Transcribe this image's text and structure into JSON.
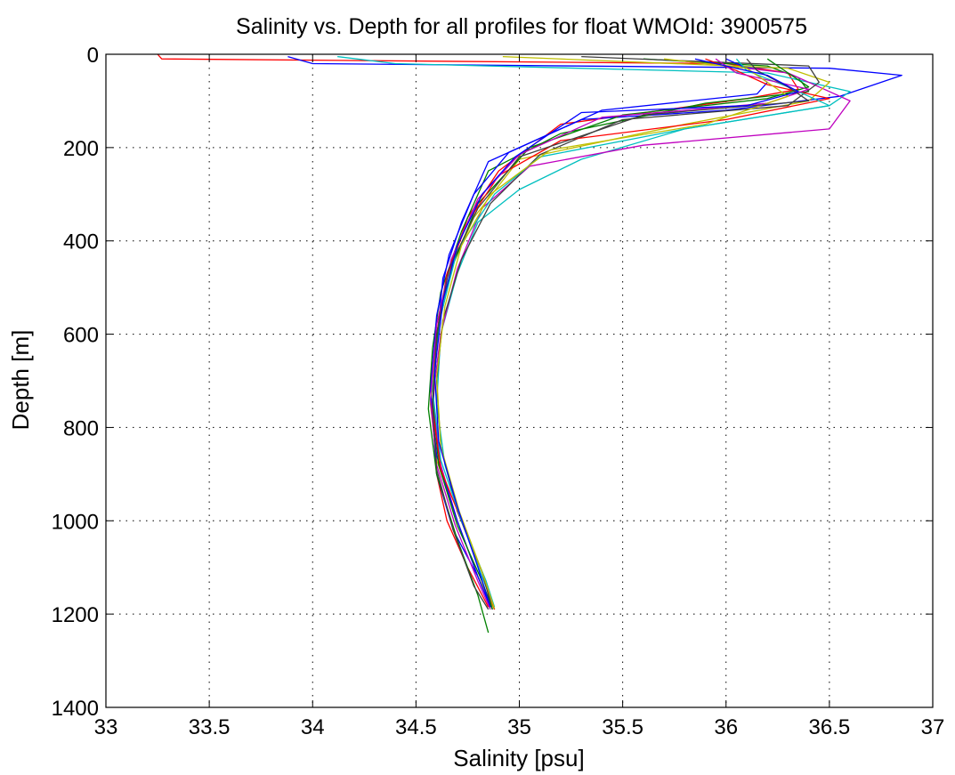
{
  "chart_data": {
    "type": "line",
    "title": "Salinity vs. Depth for all profiles for float WMOId: 3900575",
    "xlabel": "Salinity [psu]",
    "ylabel": "Depth [m]",
    "xlim": [
      33,
      37
    ],
    "ylim": [
      0,
      1400
    ],
    "y_reversed": true,
    "grid": true,
    "legend": "none",
    "x_ticks": [
      33,
      33.5,
      34,
      34.5,
      35,
      35.5,
      36,
      36.5,
      37
    ],
    "x_tick_labels": [
      "33",
      "33.5",
      "34",
      "34.5",
      "35",
      "35.5",
      "36",
      "36.5",
      "37"
    ],
    "y_ticks": [
      0,
      200,
      400,
      600,
      800,
      1000,
      1200,
      1400
    ],
    "y_tick_labels": [
      "0",
      "200",
      "400",
      "600",
      "800",
      "1000",
      "1200",
      "1400"
    ],
    "colors": [
      "#0000ff",
      "#008000",
      "#ff0000",
      "#00bfbf",
      "#bf00bf",
      "#bfbf00",
      "#404040"
    ],
    "series": [
      {
        "color": "#ff0000",
        "x": [
          33.25,
          33.27,
          36.0,
          36.3,
          36.35,
          36.1,
          35.2,
          34.9,
          34.75,
          34.65,
          34.6,
          34.58,
          34.6,
          34.65,
          34.75,
          34.85
        ],
        "y": [
          0,
          10,
          20,
          40,
          75,
          95,
          150,
          250,
          350,
          480,
          600,
          760,
          900,
          1000,
          1100,
          1185
        ]
      },
      {
        "color": "#0000ff",
        "x": [
          33.88,
          34.0,
          36.5,
          36.85,
          36.55,
          36.0,
          35.3,
          34.85,
          34.72,
          34.63,
          34.6,
          34.58,
          34.6,
          34.68,
          34.8,
          34.87
        ],
        "y": [
          5,
          20,
          30,
          45,
          90,
          120,
          140,
          230,
          360,
          480,
          620,
          780,
          900,
          1020,
          1120,
          1190
        ]
      },
      {
        "color": "#008000",
        "x": [
          35.6,
          36.2,
          36.35,
          36.4,
          35.9,
          35.2,
          34.85,
          34.72,
          34.62,
          34.58,
          34.56,
          34.6,
          34.7,
          34.8,
          34.85
        ],
        "y": [
          10,
          25,
          50,
          80,
          105,
          170,
          250,
          380,
          510,
          630,
          760,
          900,
          1040,
          1160,
          1240
        ]
      },
      {
        "color": "#00bfbf",
        "x": [
          34.12,
          34.4,
          36.2,
          36.6,
          36.5,
          35.8,
          35.3,
          35.0,
          34.8,
          34.7,
          34.62,
          34.6,
          34.64,
          34.72,
          34.82,
          34.88
        ],
        "y": [
          5,
          20,
          40,
          80,
          110,
          160,
          225,
          290,
          360,
          470,
          600,
          750,
          880,
          1000,
          1120,
          1190
        ]
      },
      {
        "color": "#bf00bf",
        "x": [
          35.8,
          36.3,
          36.45,
          36.6,
          36.5,
          35.6,
          35.05,
          34.82,
          34.7,
          34.62,
          34.58,
          34.62,
          34.7,
          34.8,
          34.86
        ],
        "y": [
          15,
          40,
          70,
          100,
          160,
          195,
          240,
          330,
          460,
          600,
          740,
          880,
          1000,
          1120,
          1185
        ]
      },
      {
        "color": "#bfbf00",
        "x": [
          34.92,
          36.3,
          36.5,
          36.4,
          35.8,
          35.0,
          34.78,
          34.65,
          34.6,
          34.57,
          34.6,
          34.7,
          34.8,
          34.88
        ],
        "y": [
          5,
          30,
          60,
          100,
          150,
          225,
          350,
          480,
          600,
          750,
          870,
          1000,
          1120,
          1190
        ]
      },
      {
        "color": "#404040",
        "x": [
          35.3,
          36.4,
          36.45,
          36.3,
          35.5,
          35.1,
          34.86,
          34.72,
          34.63,
          34.6,
          34.62,
          34.7,
          34.82,
          34.87
        ],
        "y": [
          5,
          25,
          60,
          110,
          140,
          215,
          320,
          440,
          570,
          700,
          840,
          980,
          1110,
          1190
        ]
      },
      {
        "color": "#0000ff",
        "x": [
          36.0,
          36.1,
          36.2,
          36.15,
          35.4,
          34.95,
          34.78,
          34.66,
          34.6,
          34.57,
          34.6,
          34.7,
          34.8,
          34.86
        ],
        "y": [
          10,
          30,
          60,
          85,
          120,
          210,
          300,
          430,
          560,
          720,
          860,
          1000,
          1120,
          1185
        ]
      },
      {
        "color": "#008000",
        "x": [
          36.2,
          36.3,
          36.4,
          36.2,
          35.5,
          35.05,
          34.8,
          34.68,
          34.61,
          34.58,
          34.61,
          34.7,
          34.82,
          34.87
        ],
        "y": [
          10,
          40,
          70,
          95,
          130,
          200,
          320,
          450,
          580,
          740,
          880,
          1010,
          1130,
          1190
        ]
      },
      {
        "color": "#ff0000",
        "x": [
          35.9,
          36.05,
          36.2,
          36.5,
          36.0,
          35.2,
          34.9,
          34.75,
          34.65,
          34.6,
          34.58,
          34.62,
          34.72,
          34.82,
          34.88
        ],
        "y": [
          10,
          35,
          65,
          95,
          140,
          185,
          260,
          360,
          470,
          600,
          760,
          890,
          1000,
          1110,
          1190
        ]
      },
      {
        "color": "#00bfbf",
        "x": [
          36.05,
          36.1,
          36.3,
          36.5,
          35.8,
          35.1,
          34.88,
          34.7,
          34.62,
          34.58,
          34.62,
          34.72,
          34.84,
          34.88
        ],
        "y": [
          10,
          35,
          70,
          110,
          160,
          220,
          300,
          420,
          560,
          720,
          870,
          1000,
          1130,
          1185
        ]
      },
      {
        "color": "#bf00bf",
        "x": [
          35.95,
          36.05,
          36.4,
          36.2,
          35.4,
          35.0,
          34.8,
          34.67,
          34.6,
          34.57,
          34.6,
          34.69,
          34.8,
          34.86
        ],
        "y": [
          10,
          40,
          75,
          105,
          135,
          215,
          310,
          440,
          580,
          740,
          880,
          1010,
          1130,
          1190
        ]
      },
      {
        "color": "#bfbf00",
        "x": [
          35.7,
          36.1,
          36.2,
          36.3,
          35.9,
          35.15,
          34.86,
          34.72,
          34.64,
          34.6,
          34.62,
          34.71,
          34.82,
          34.88
        ],
        "y": [
          10,
          30,
          60,
          90,
          150,
          205,
          300,
          410,
          540,
          690,
          840,
          980,
          1110,
          1188
        ]
      },
      {
        "color": "#404040",
        "x": [
          36.1,
          36.15,
          36.3,
          36.4,
          35.6,
          35.0,
          34.8,
          34.66,
          34.6,
          34.58,
          34.6,
          34.68,
          34.78,
          34.85
        ],
        "y": [
          10,
          35,
          70,
          100,
          130,
          220,
          330,
          460,
          600,
          750,
          890,
          1020,
          1140,
          1190
        ]
      },
      {
        "color": "#0000ff",
        "x": [
          35.85,
          36.2,
          36.35,
          36.1,
          35.3,
          34.98,
          34.82,
          34.7,
          34.63,
          34.59,
          34.61,
          34.7,
          34.8,
          34.86
        ],
        "y": [
          10,
          45,
          80,
          110,
          125,
          220,
          300,
          410,
          530,
          680,
          830,
          970,
          1100,
          1185
        ]
      }
    ]
  }
}
